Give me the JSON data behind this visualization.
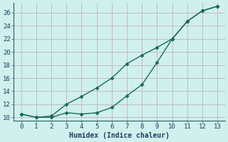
{
  "xlabel": "Humidex (Indice chaleur)",
  "bg_color": "#cff0ec",
  "plot_bg_color": "#cff0ec",
  "grid_color": "#c4b0c8",
  "line_color": "#1a6b5a",
  "axis_color": "#2a6060",
  "tick_color": "#1a4060",
  "xlim": [
    -0.5,
    13.5
  ],
  "ylim": [
    9.5,
    27.5
  ],
  "xticks": [
    0,
    1,
    2,
    3,
    4,
    5,
    6,
    7,
    8,
    9,
    10,
    11,
    12,
    13
  ],
  "yticks": [
    10,
    12,
    14,
    16,
    18,
    20,
    22,
    24,
    26
  ],
  "line1_x": [
    0,
    1,
    2,
    3,
    4,
    5,
    6,
    7,
    8,
    9,
    10,
    11,
    12,
    13
  ],
  "line1_y": [
    10.5,
    10.0,
    10.0,
    10.7,
    10.5,
    10.7,
    11.5,
    13.3,
    15.0,
    18.4,
    22.0,
    24.7,
    26.3,
    27.0
  ],
  "line2_x": [
    0,
    1,
    2,
    3,
    4,
    5,
    6,
    7,
    8,
    9,
    10,
    11,
    12,
    13
  ],
  "line2_y": [
    10.5,
    10.0,
    10.2,
    12.0,
    13.2,
    14.5,
    16.0,
    18.2,
    19.5,
    20.7,
    22.0,
    24.7,
    26.3,
    27.0
  ],
  "markersize": 2.5,
  "linewidth": 1.0,
  "xlabel_fontsize": 7,
  "tick_fontsize": 6.5
}
